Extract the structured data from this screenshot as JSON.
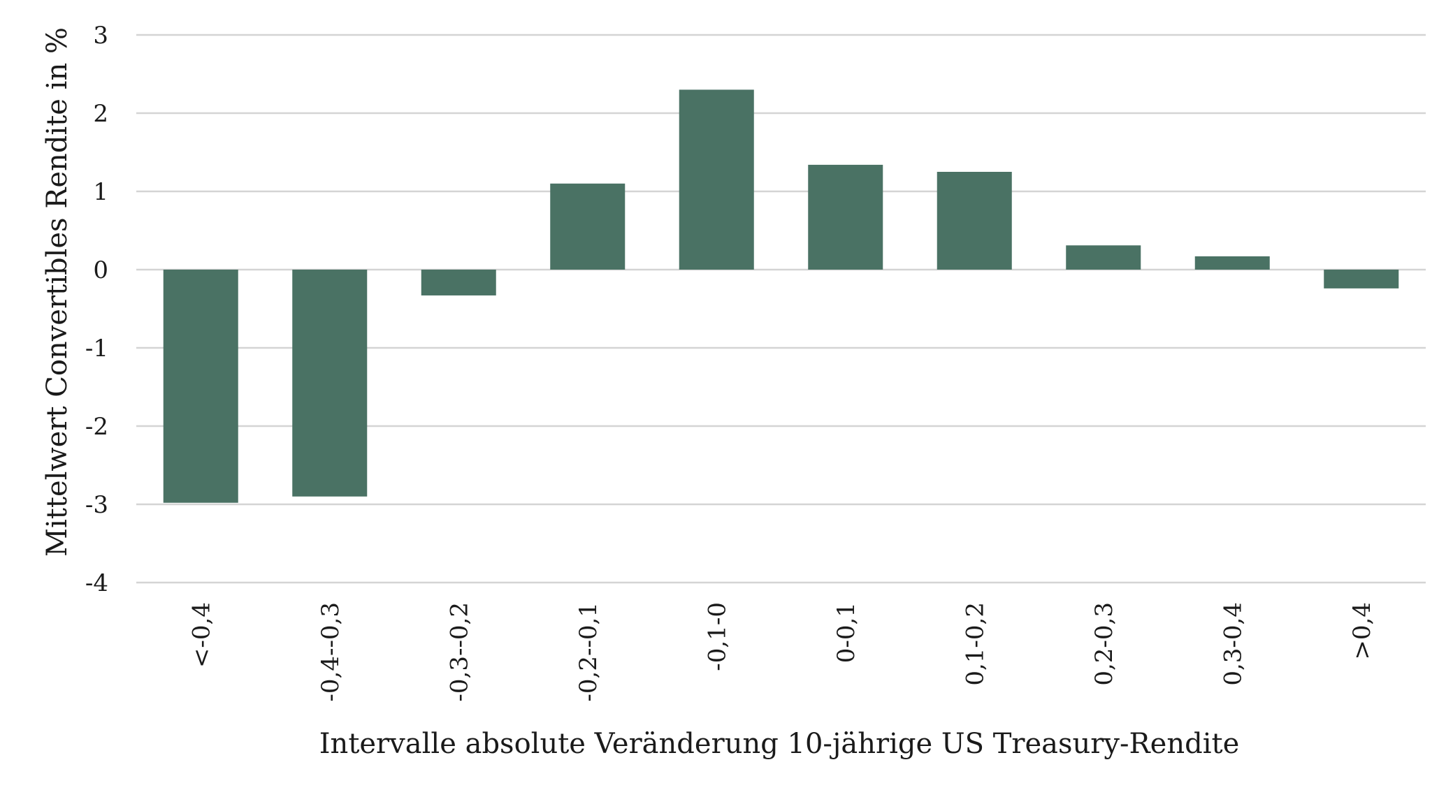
{
  "chart_data": {
    "type": "bar",
    "title": "",
    "xlabel": "Intervalle absolute Veränderung 10-jährige US Treasury-Rendite",
    "ylabel": "Mittelwert Convertibles Rendite in %",
    "categories": [
      "<-0,4",
      "-0,4--0,3",
      "-0,3--0,2",
      "-0,2--0,1",
      "-0,1-0",
      "0-0,1",
      "0,1-0,2",
      "0,2-0,3",
      "0,3-0,4",
      ">0,4"
    ],
    "values": [
      -2.98,
      -2.9,
      -0.33,
      1.1,
      2.3,
      1.34,
      1.25,
      0.31,
      0.17,
      -0.24
    ],
    "ylim": [
      -4,
      3
    ],
    "yticks": [
      3,
      2,
      1,
      0,
      -1,
      -2,
      -3,
      -4
    ],
    "ytick_labels": [
      "3",
      "2",
      "1",
      "0",
      "-1",
      "-2",
      "-3",
      "-4"
    ],
    "grid": true,
    "legend": "none",
    "bar_color": "#4a7264"
  }
}
